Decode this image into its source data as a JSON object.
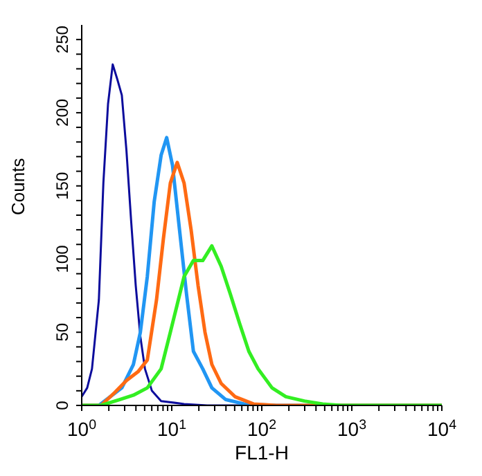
{
  "chart_data": {
    "type": "line",
    "xlabel": "FL1-H",
    "ylabel": "Counts",
    "log": "x",
    "xlim": [
      1,
      10000
    ],
    "ylim": [
      0,
      260
    ],
    "xticks": [
      {
        "value": 1,
        "label": "10$^{0}$"
      },
      {
        "value": 2,
        "label": null
      },
      {
        "value": 3,
        "label": null
      },
      {
        "value": 4,
        "label": null
      },
      {
        "value": 5,
        "label": null
      },
      {
        "value": 6,
        "label": null
      },
      {
        "value": 7,
        "label": null
      },
      {
        "value": 8,
        "label": null
      },
      {
        "value": 9,
        "label": null
      },
      {
        "value": 10,
        "label": "10$^{1}$"
      },
      {
        "value": 20,
        "label": null
      },
      {
        "value": 30,
        "label": null
      },
      {
        "value": 40,
        "label": null
      },
      {
        "value": 50,
        "label": null
      },
      {
        "value": 60,
        "label": null
      },
      {
        "value": 70,
        "label": null
      },
      {
        "value": 80,
        "label": null
      },
      {
        "value": 90,
        "label": null
      },
      {
        "value": 100,
        "label": "10$^{2}$"
      },
      {
        "value": 200,
        "label": null
      },
      {
        "value": 300,
        "label": null
      },
      {
        "value": 400,
        "label": null
      },
      {
        "value": 500,
        "label": null
      },
      {
        "value": 600,
        "label": null
      },
      {
        "value": 700,
        "label": null
      },
      {
        "value": 800,
        "label": null
      },
      {
        "value": 900,
        "label": null
      },
      {
        "value": 1000,
        "label": "10$^{3}$"
      },
      {
        "value": 2000,
        "label": null
      },
      {
        "value": 3000,
        "label": null
      },
      {
        "value": 4000,
        "label": null
      },
      {
        "value": 5000,
        "label": null
      },
      {
        "value": 6000,
        "label": null
      },
      {
        "value": 7000,
        "label": null
      },
      {
        "value": 8000,
        "label": null
      },
      {
        "value": 9000,
        "label": null
      },
      {
        "value": 10000,
        "label": "10$^{4}$"
      }
    ],
    "yticks": [
      0,
      {
        "value": 10,
        "label": null
      },
      {
        "value": 20,
        "label": null
      },
      {
        "value": 30,
        "label": null
      },
      {
        "value": 40,
        "label": null
      },
      50,
      {
        "value": 60,
        "label": null
      },
      {
        "value": 70,
        "label": null
      },
      {
        "value": 80,
        "label": null
      },
      {
        "value": 90,
        "label": null
      },
      100,
      {
        "value": 110,
        "label": null
      },
      {
        "value": 120,
        "label": null
      },
      {
        "value": 130,
        "label": null
      },
      {
        "value": 140,
        "label": null
      },
      150,
      {
        "value": 160,
        "label": null
      },
      {
        "value": 170,
        "label": null
      },
      {
        "value": 180,
        "label": null
      },
      {
        "value": 190,
        "label": null
      },
      200,
      {
        "value": 210,
        "label": null
      },
      {
        "value": 220,
        "label": null
      },
      {
        "value": 230,
        "label": null
      },
      {
        "value": 240,
        "label": null
      },
      250
    ],
    "grid": false,
    "legend": false,
    "marker": "none",
    "line_style": "solid",
    "series": [
      {
        "color": "#0c0c9c",
        "x": [
          1,
          1.15,
          1.3,
          1.55,
          1.74,
          1.96,
          2.21,
          2.48,
          2.79,
          3.14,
          3.54,
          3.98,
          4.48,
          5.04,
          6.02,
          7.62,
          13.7,
          24.7,
          10000
        ],
        "values": [
          6,
          12,
          25,
          72,
          152,
          206,
          233,
          223,
          212,
          174,
          126,
          82,
          47,
          25,
          10,
          3,
          1,
          0,
          0
        ]
      },
      {
        "color": "#2196f3",
        "x": [
          1,
          1.55,
          2.08,
          2.79,
          3.75,
          4.48,
          5.35,
          6.38,
          7.62,
          8.78,
          10.2,
          12.2,
          14.6,
          17.4,
          22.1,
          27.9,
          39.8,
          63.8,
          145,
          10000
        ],
        "values": [
          0,
          0,
          6,
          12,
          28,
          50,
          88,
          139,
          171,
          183,
          164,
          120,
          76,
          37,
          25,
          12,
          4,
          1,
          0,
          0
        ]
      },
      {
        "color": "#ff6a13",
        "x": [
          1,
          1.64,
          2.34,
          3.14,
          4.22,
          5.35,
          6.77,
          8.08,
          9.65,
          11.5,
          13.7,
          16.4,
          19.6,
          23.4,
          27.9,
          35.4,
          50.4,
          80.9,
          145,
          10000
        ],
        "values": [
          0,
          0,
          9,
          17,
          23,
          31,
          72,
          114,
          152,
          166,
          152,
          120,
          82,
          50,
          28,
          15,
          6,
          1,
          0,
          0
        ]
      },
      {
        "color": "#33ee22",
        "x": [
          1,
          1.64,
          2.63,
          3.75,
          5.35,
          7.62,
          9.65,
          11.5,
          13.7,
          17.4,
          22.1,
          27.9,
          35.4,
          44.8,
          56.7,
          71.8,
          91,
          130,
          185,
          297,
          475,
          763,
          10000
        ],
        "values": [
          0,
          0,
          4,
          7,
          12,
          25,
          50,
          69,
          88,
          99,
          99,
          109,
          95,
          76,
          56,
          37,
          25,
          12,
          6,
          3,
          1,
          0,
          0
        ]
      }
    ]
  }
}
